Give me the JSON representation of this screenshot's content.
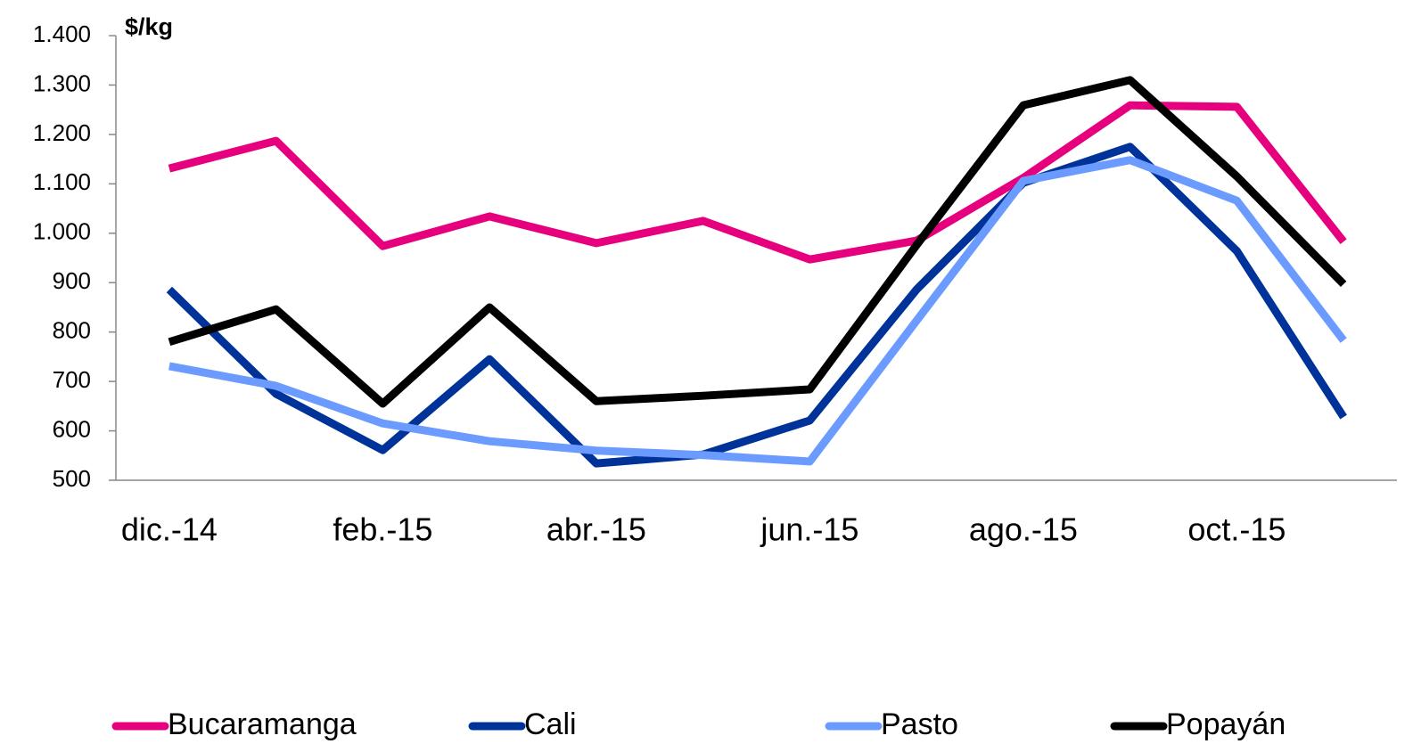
{
  "chart_data": {
    "type": "line",
    "y_axis_label": "$/kg",
    "categories": [
      "dic.-14",
      null,
      "feb.-15",
      null,
      "abr.-15",
      null,
      "jun.-15",
      null,
      "ago.-15",
      null,
      "oct.-15",
      null
    ],
    "series": [
      {
        "name": "Bucaramanga",
        "color": "#e6007e",
        "values": [
          1131,
          1187,
          974,
          1034,
          980,
          1025,
          947,
          985,
          1112,
          1259,
          1256,
          983
        ]
      },
      {
        "name": "Cali",
        "color": "#003399",
        "values": [
          886,
          675,
          561,
          745,
          534,
          552,
          621,
          886,
          1102,
          1175,
          964,
          628
        ]
      },
      {
        "name": "Pasto",
        "color": "#6b9bff",
        "values": [
          731,
          691,
          615,
          579,
          560,
          551,
          538,
          823,
          1106,
          1148,
          1066,
          783
        ]
      },
      {
        "name": "Popayán",
        "color": "#000000",
        "values": [
          780,
          846,
          655,
          850,
          660,
          671,
          684,
          976,
          1259,
          1310,
          1115,
          897
        ]
      }
    ],
    "ylim": [
      500,
      1400
    ],
    "yticks": [
      500,
      600,
      700,
      800,
      900,
      {
        "value": 1000,
        "label": "1.000"
      },
      {
        "value": 1100,
        "label": "1.100"
      },
      {
        "value": 1200,
        "label": "1.200"
      },
      {
        "value": 1300,
        "label": "1.300"
      },
      {
        "value": 1400,
        "label": "1.400"
      }
    ],
    "legend": "bottom"
  }
}
